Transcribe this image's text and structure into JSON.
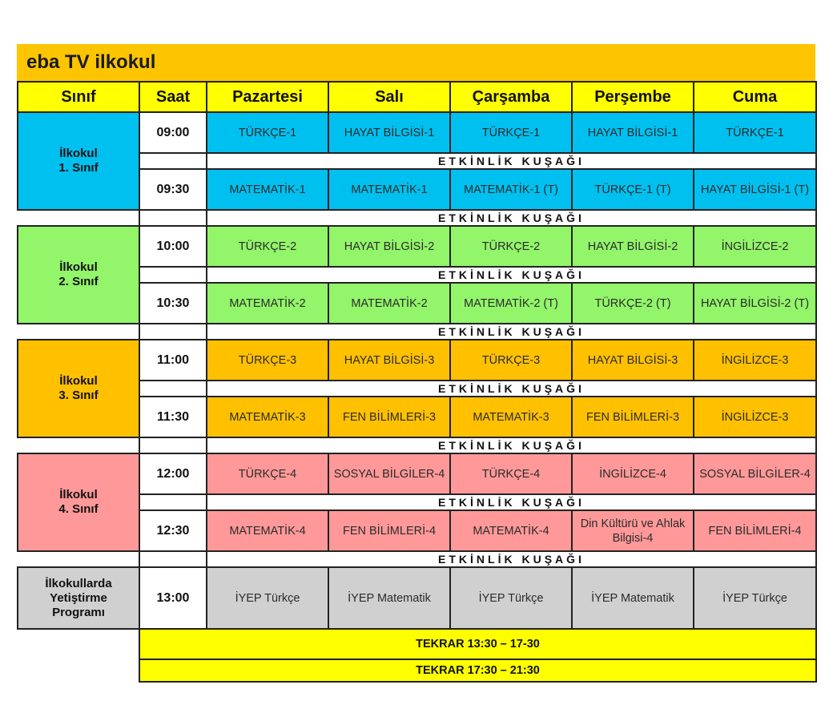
{
  "title": "eba TV ilkokul",
  "headers": [
    "Sınıf",
    "Saat",
    "Pazartesi",
    "Salı",
    "Çarşamba",
    "Perşembe",
    "Cuma"
  ],
  "break_label": "ETKİNLİK KUŞAĞI",
  "groups": [
    {
      "label": "İlkokul\n1. Sınıf",
      "color": "#00c0f0",
      "rows": [
        {
          "time": "09:00",
          "cells": [
            "TÜRKÇE-1",
            "HAYAT BİLGİSİ-1",
            "TÜRKÇE-1",
            "HAYAT BİLGİSİ-1",
            "TÜRKÇE-1"
          ]
        },
        {
          "time": "09:30",
          "cells": [
            "MATEMATİK-1",
            "MATEMATİK-1",
            "MATEMATİK-1 (T)",
            "TÜRKÇE-1 (T)",
            "HAYAT BİLGİSİ-1 (T)"
          ]
        }
      ]
    },
    {
      "label": "İlkokul\n2. Sınıf",
      "color": "#92f56a",
      "rows": [
        {
          "time": "10:00",
          "cells": [
            "TÜRKÇE-2",
            "HAYAT BİLGİSİ-2",
            "TÜRKÇE-2",
            "HAYAT BİLGİSİ-2",
            "İNGİLİZCE-2"
          ]
        },
        {
          "time": "10:30",
          "cells": [
            "MATEMATİK-2",
            "MATEMATİK-2",
            "MATEMATİK-2 (T)",
            "TÜRKÇE-2 (T)",
            "HAYAT BİLGİSİ-2 (T)"
          ]
        }
      ]
    },
    {
      "label": "İlkokul\n3. Sınıf",
      "color": "#ffc000",
      "rows": [
        {
          "time": "11:00",
          "cells": [
            "TÜRKÇE-3",
            "HAYAT BİLGİSİ-3",
            "TÜRKÇE-3",
            "HAYAT BİLGİSİ-3",
            "İNGİLİZCE-3"
          ]
        },
        {
          "time": "11:30",
          "cells": [
            "MATEMATİK-3",
            "FEN BİLİMLERİ-3",
            "MATEMATİK-3",
            "FEN BİLİMLERİ-3",
            "İNGİLİZCE-3"
          ]
        }
      ]
    },
    {
      "label": "İlkokul\n4. Sınıf",
      "color": "#ff9999",
      "rows": [
        {
          "time": "12:00",
          "cells": [
            "TÜRKÇE-4",
            "SOSYAL BİLGİLER-4",
            "TÜRKÇE-4",
            "İNGİLİZCE-4",
            "SOSYAL BİLGİLER-4"
          ]
        },
        {
          "time": "12:30",
          "cells": [
            "MATEMATİK-4",
            "FEN BİLİMLERİ-4",
            "MATEMATİK-4",
            "Din Kültürü ve Ahlak Bilgisi-4",
            "FEN BİLİMLERİ-4"
          ]
        }
      ]
    }
  ],
  "iyep": {
    "label": "İlkokullarda\nYetiştirme\nProgramı",
    "color": "#d0d0d0",
    "time": "13:00",
    "cells": [
      "İYEP Türkçe",
      "İYEP Matematik",
      "İYEP Türkçe",
      "İYEP Matematik",
      "İYEP Türkçe"
    ]
  },
  "repeats": [
    "TEKRAR 13:30 – 17-30",
    "TEKRAR 17:30 – 21:30"
  ]
}
